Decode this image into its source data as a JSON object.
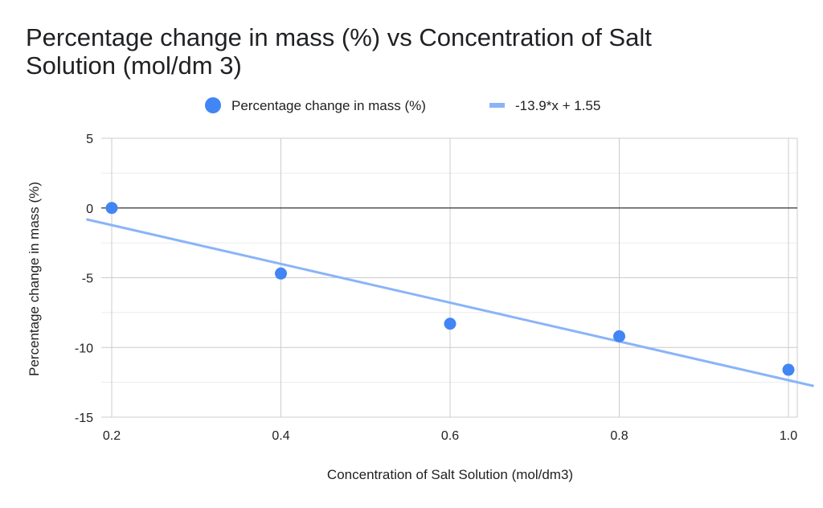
{
  "chart_data": {
    "type": "scatter",
    "title": "Percentage change in mass (%) vs Concentration of Salt Solution (mol/dm 3)",
    "title_lines": [
      "Percentage change in mass (%) vs Concentration of Salt",
      "Solution (mol/dm 3)"
    ],
    "xlabel": "Concentration of Salt Solution (mol/dm3)",
    "ylabel": "Percentage change in mass (%)",
    "xlim": [
      0.2,
      1.0
    ],
    "ylim": [
      -15,
      5
    ],
    "x_ticks": [
      "0.2",
      "0.4",
      "0.6",
      "0.8",
      "1.0"
    ],
    "y_ticks": [
      "5",
      "0",
      "-5",
      "-10",
      "-15"
    ],
    "x_tick_values": [
      0.2,
      0.4,
      0.6,
      0.8,
      1.0
    ],
    "y_tick_values": [
      5,
      0,
      -5,
      -10,
      -15
    ],
    "grid": true,
    "legend_position": "top",
    "series": [
      {
        "name": "Percentage change in mass (%)",
        "color": "#4285f4",
        "x": [
          0.2,
          0.4,
          0.6,
          0.8,
          1.0
        ],
        "y": [
          0.0,
          -4.7,
          -8.3,
          -9.2,
          -11.6
        ]
      }
    ],
    "trendline": {
      "label": "-13.9*x + 1.55",
      "slope": -13.9,
      "intercept": 1.55,
      "color": "#8ab4f8"
    }
  }
}
